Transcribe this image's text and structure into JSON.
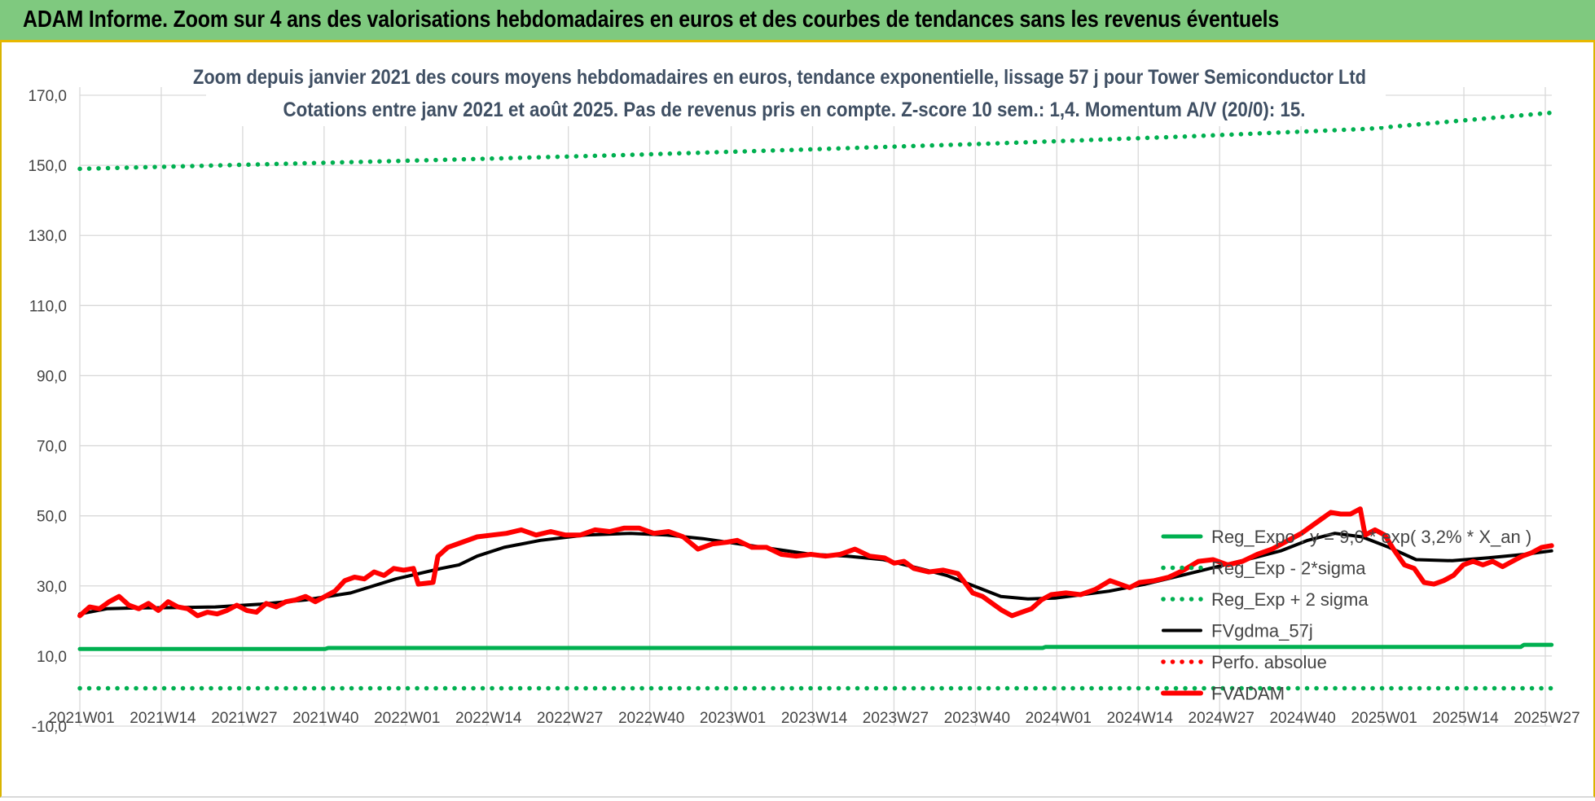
{
  "header": {
    "title": "ADAM Informe. Zoom sur 4 ans des valorisations hebdomadaires en euros et des courbes de tendances sans les revenus éventuels"
  },
  "chart_data": {
    "type": "line",
    "title": "Zoom depuis janvier 2021 des cours moyens hebdomadaires en euros, tendance exponentielle, lissage 57 j pour Tower Semiconductor Ltd",
    "subtitle": "Cotations entre janv 2021 et août 2025.  Pas de revenus pris en compte. Z-score 10 sem.: 1,4. Momentum A/V (20/0): 15.",
    "xlabel": "",
    "ylabel": "",
    "ylim": [
      -10,
      170
    ],
    "y_ticks": [
      "170,0",
      "150,0",
      "130,0",
      "110,0",
      "90,0",
      "70,0",
      "50,0",
      "30,0",
      "10,0",
      "-10,0"
    ],
    "x_ticks": [
      "2021W01",
      "2021W14",
      "2021W27",
      "2021W40",
      "2022W01",
      "2022W14",
      "2022W27",
      "2022W40",
      "2023W01",
      "2023W14",
      "2023W27",
      "2023W40",
      "2024W01",
      "2024W14",
      "2024W27",
      "2024W40",
      "2025W01",
      "2025W14",
      "2025W27"
    ],
    "x_range_weeks": [
      0,
      240
    ],
    "grid": true,
    "legend_position": "right",
    "series": [
      {
        "name": "Reg_Expo : y = 9,0 * exp( 3,2% *  X_an )",
        "color": "#00b050",
        "style": "solid",
        "points": [
          [
            0,
            12.0
          ],
          [
            40,
            12.0
          ],
          [
            40.5,
            12.3
          ],
          [
            157,
            12.3
          ],
          [
            157.5,
            12.6
          ],
          [
            235,
            12.6
          ],
          [
            235.5,
            13.2
          ],
          [
            240,
            13.2
          ]
        ]
      },
      {
        "name": "Reg_Exp - 2*sigma",
        "color": "#00b050",
        "style": "dotted",
        "points": [
          [
            0,
            0.8
          ],
          [
            240,
            0.8
          ]
        ]
      },
      {
        "name": "Reg_Exp + 2 sigma",
        "color": "#00b050",
        "style": "dotted",
        "points": [
          [
            0,
            149
          ],
          [
            30,
            150.3
          ],
          [
            60,
            151.6
          ],
          [
            90,
            153.0
          ],
          [
            120,
            154.6
          ],
          [
            150,
            156.3
          ],
          [
            180,
            158.2
          ],
          [
            210,
            160.4
          ],
          [
            240,
            165.0
          ]
        ]
      },
      {
        "name": "FVgdma_57j",
        "color": "#000000",
        "style": "solid",
        "points": [
          [
            0,
            22
          ],
          [
            6,
            23.5
          ],
          [
            12,
            23.7
          ],
          [
            20,
            23.8
          ],
          [
            30,
            24
          ],
          [
            40,
            24.8
          ],
          [
            50,
            26
          ],
          [
            60,
            28
          ],
          [
            70,
            32
          ],
          [
            80,
            35
          ],
          [
            84,
            36
          ],
          [
            88,
            38.5
          ],
          [
            94,
            41
          ],
          [
            102,
            43
          ],
          [
            112,
            44.5
          ],
          [
            122,
            45
          ],
          [
            130,
            44.5
          ],
          [
            138,
            43.5
          ],
          [
            146,
            42
          ],
          [
            154,
            40.5
          ],
          [
            162,
            39
          ],
          [
            170,
            38.5
          ],
          [
            178,
            37.5
          ],
          [
            186,
            35
          ],
          [
            192,
            33
          ],
          [
            198,
            30
          ],
          [
            204,
            27
          ],
          [
            210,
            26.3
          ],
          [
            216,
            26.5
          ],
          [
            222,
            27.5
          ],
          [
            228,
            28.5
          ],
          [
            236,
            30.5
          ],
          [
            244,
            33
          ],
          [
            252,
            35.5
          ],
          [
            260,
            38
          ],
          [
            266,
            40
          ],
          [
            272,
            43
          ],
          [
            278,
            45
          ],
          [
            284,
            44
          ],
          [
            290,
            41
          ],
          [
            296,
            37.5
          ],
          [
            304,
            37.2
          ],
          [
            312,
            38
          ],
          [
            320,
            39
          ],
          [
            326,
            40
          ]
        ]
      },
      {
        "name": "Perfo. absolue",
        "color": "#ff0000",
        "style": "dotted",
        "points": []
      },
      {
        "name": "FVADAM",
        "color": "#ff0000",
        "style": "solid",
        "points": [
          [
            0,
            21.5
          ],
          [
            2,
            24
          ],
          [
            4,
            23.5
          ],
          [
            6,
            25.5
          ],
          [
            8,
            27
          ],
          [
            10,
            24.5
          ],
          [
            12,
            23.5
          ],
          [
            14,
            25
          ],
          [
            16,
            23
          ],
          [
            18,
            25.5
          ],
          [
            20,
            24
          ],
          [
            22,
            23.5
          ],
          [
            24,
            21.5
          ],
          [
            26,
            22.5
          ],
          [
            28,
            22
          ],
          [
            30,
            23
          ],
          [
            32,
            24.5
          ],
          [
            34,
            23
          ],
          [
            36,
            22.5
          ],
          [
            38,
            25
          ],
          [
            40,
            24
          ],
          [
            42,
            25.5
          ],
          [
            44,
            26
          ],
          [
            46,
            27
          ],
          [
            48,
            25.5
          ],
          [
            50,
            27
          ],
          [
            52,
            28.5
          ],
          [
            54,
            31.5
          ],
          [
            56,
            32.5
          ],
          [
            58,
            32
          ],
          [
            60,
            34
          ],
          [
            62,
            33
          ],
          [
            64,
            35
          ],
          [
            66,
            34.5
          ],
          [
            68,
            35
          ],
          [
            69,
            30.5
          ],
          [
            72,
            31
          ],
          [
            73,
            38.5
          ],
          [
            75,
            41
          ],
          [
            78,
            42.5
          ],
          [
            81,
            44
          ],
          [
            84,
            44.5
          ],
          [
            87,
            45
          ],
          [
            90,
            46
          ],
          [
            93,
            44.5
          ],
          [
            96,
            45.5
          ],
          [
            99,
            44.5
          ],
          [
            102,
            44.5
          ],
          [
            105,
            46
          ],
          [
            108,
            45.5
          ],
          [
            111,
            46.5
          ],
          [
            114,
            46.5
          ],
          [
            117,
            45
          ],
          [
            120,
            45.5
          ],
          [
            123,
            44
          ],
          [
            126,
            40.5
          ],
          [
            129,
            42
          ],
          [
            132,
            42.5
          ],
          [
            134,
            43
          ],
          [
            137,
            41
          ],
          [
            140,
            41
          ],
          [
            143,
            39
          ],
          [
            146,
            38.5
          ],
          [
            149,
            39
          ],
          [
            152,
            38.5
          ],
          [
            155,
            39
          ],
          [
            158,
            40.5
          ],
          [
            161,
            38.5
          ],
          [
            164,
            38
          ],
          [
            166,
            36.5
          ],
          [
            168,
            37
          ],
          [
            170,
            35
          ],
          [
            173,
            34
          ],
          [
            176,
            34.5
          ],
          [
            179,
            33.5
          ],
          [
            182,
            28
          ],
          [
            184,
            27
          ],
          [
            186,
            25
          ],
          [
            188,
            23
          ],
          [
            190,
            21.5
          ],
          [
            192,
            22.5
          ],
          [
            194,
            23.5
          ],
          [
            196,
            26
          ],
          [
            198,
            27.5
          ],
          [
            201,
            28
          ],
          [
            204,
            27.5
          ],
          [
            207,
            29
          ],
          [
            210,
            31.5
          ],
          [
            212,
            30.5
          ],
          [
            214,
            29.5
          ],
          [
            216,
            31
          ],
          [
            219,
            31.5
          ],
          [
            222,
            32.5
          ],
          [
            225,
            34.5
          ],
          [
            228,
            37
          ],
          [
            231,
            37.5
          ],
          [
            234,
            36
          ],
          [
            237,
            37
          ],
          [
            240,
            39
          ],
          [
            243,
            40.5
          ],
          [
            245,
            42
          ],
          [
            247,
            43.5
          ],
          [
            249,
            45
          ],
          [
            251,
            47
          ],
          [
            253,
            49
          ],
          [
            255,
            51
          ],
          [
            257,
            50.5
          ],
          [
            259,
            50.5
          ],
          [
            261,
            52
          ],
          [
            262,
            44.5
          ],
          [
            264,
            46
          ],
          [
            266,
            44.5
          ],
          [
            268,
            40
          ],
          [
            270,
            36
          ],
          [
            272,
            35
          ],
          [
            274,
            31
          ],
          [
            276,
            30.5
          ],
          [
            278,
            31.5
          ],
          [
            280,
            33
          ],
          [
            282,
            36
          ],
          [
            284,
            37
          ],
          [
            286,
            36
          ],
          [
            288,
            37
          ],
          [
            290,
            35.5
          ],
          [
            292,
            37
          ],
          [
            294,
            38.5
          ],
          [
            296,
            39.5
          ],
          [
            298,
            41
          ],
          [
            300,
            41.5
          ]
        ]
      }
    ]
  }
}
